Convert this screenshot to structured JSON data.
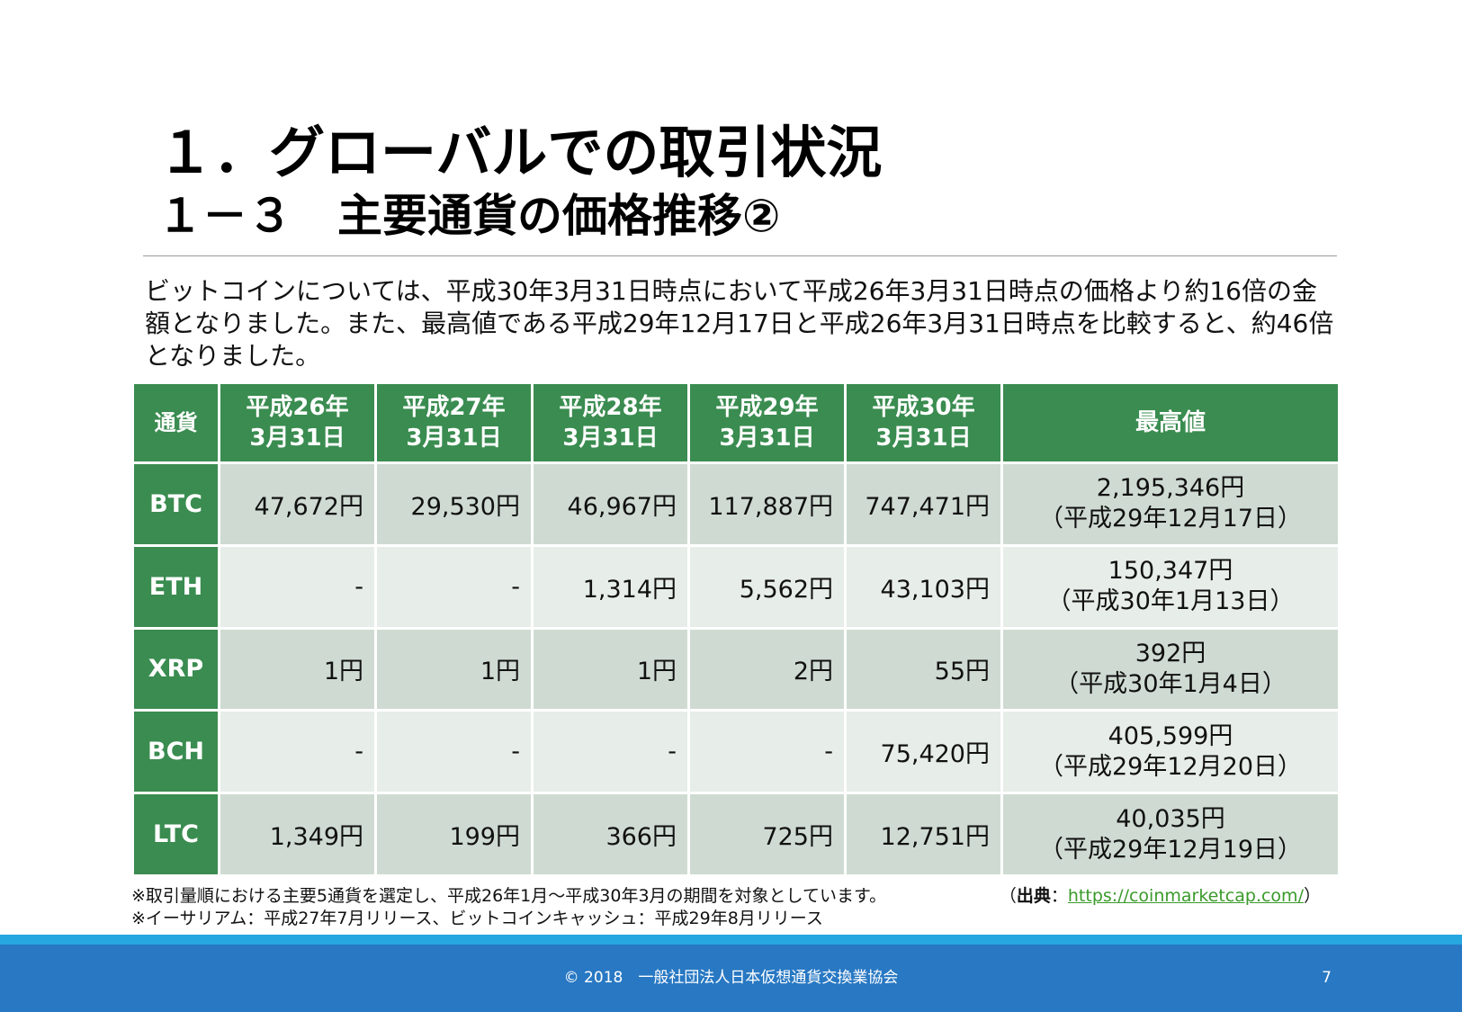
{
  "header": {
    "title": "１．グローバルでの取引状況",
    "subtitle": "１－３　主要通貨の価格推移②"
  },
  "intro": "ビットコインについては、平成30年3月31日時点において平成26年3月31日時点の価格より約16倍の金額となりました。また、最高値である平成29年12月17日と平成26年3月31日時点を比較すると、約46倍となりました。",
  "table": {
    "columns": [
      {
        "line1": "通貨",
        "line2": ""
      },
      {
        "line1": "平成26年",
        "line2": "3月31日"
      },
      {
        "line1": "平成27年",
        "line2": "3月31日"
      },
      {
        "line1": "平成28年",
        "line2": "3月31日"
      },
      {
        "line1": "平成29年",
        "line2": "3月31日"
      },
      {
        "line1": "平成30年",
        "line2": "3月31日"
      },
      {
        "line1": "最高値",
        "line2": ""
      }
    ],
    "rows": [
      {
        "currency": "BTC",
        "values": [
          "47,672円",
          "29,530円",
          "46,967円",
          "117,887円",
          "747,471円"
        ],
        "high_value": "2,195,346円",
        "high_date": "（平成29年12月17日）"
      },
      {
        "currency": "ETH",
        "values": [
          "-",
          "-",
          "1,314円",
          "5,562円",
          "43,103円"
        ],
        "high_value": "150,347円",
        "high_date": "（平成30年1月13日）"
      },
      {
        "currency": "XRP",
        "values": [
          "1円",
          "1円",
          "1円",
          "2円",
          "55円"
        ],
        "high_value": "392円",
        "high_date": "（平成30年1月4日）"
      },
      {
        "currency": "BCH",
        "values": [
          "-",
          "-",
          "-",
          "-",
          "75,420円"
        ],
        "high_value": "405,599円",
        "high_date": "（平成29年12月20日）"
      },
      {
        "currency": "LTC",
        "values": [
          "1,349円",
          "199円",
          "366円",
          "725円",
          "12,751円"
        ],
        "high_value": "40,035円",
        "high_date": "（平成29年12月19日）"
      }
    ]
  },
  "notes": [
    "※取引量順における主要5通貨を選定し、平成26年1月～平成30年3月の期間を対象としています。",
    "※イーサリアム：平成27年7月リリース、ビットコインキャッシュ：平成29年8月リリース"
  ],
  "source": {
    "open": "（",
    "label": "出典",
    "sep": "：",
    "link": "https://coinmarketcap.com/",
    "close": "）"
  },
  "footer": {
    "copyright": "© 2018　一般社団法人日本仮想通貨交換業協会",
    "page": "7"
  },
  "colors": {
    "header_green": "#3a8c50",
    "row_dark": "#cfdbd2",
    "row_light": "#e7ede9",
    "footer_blue": "#2878c3",
    "footer_strip": "#27a7e0",
    "link_green": "#3a9a2a"
  }
}
